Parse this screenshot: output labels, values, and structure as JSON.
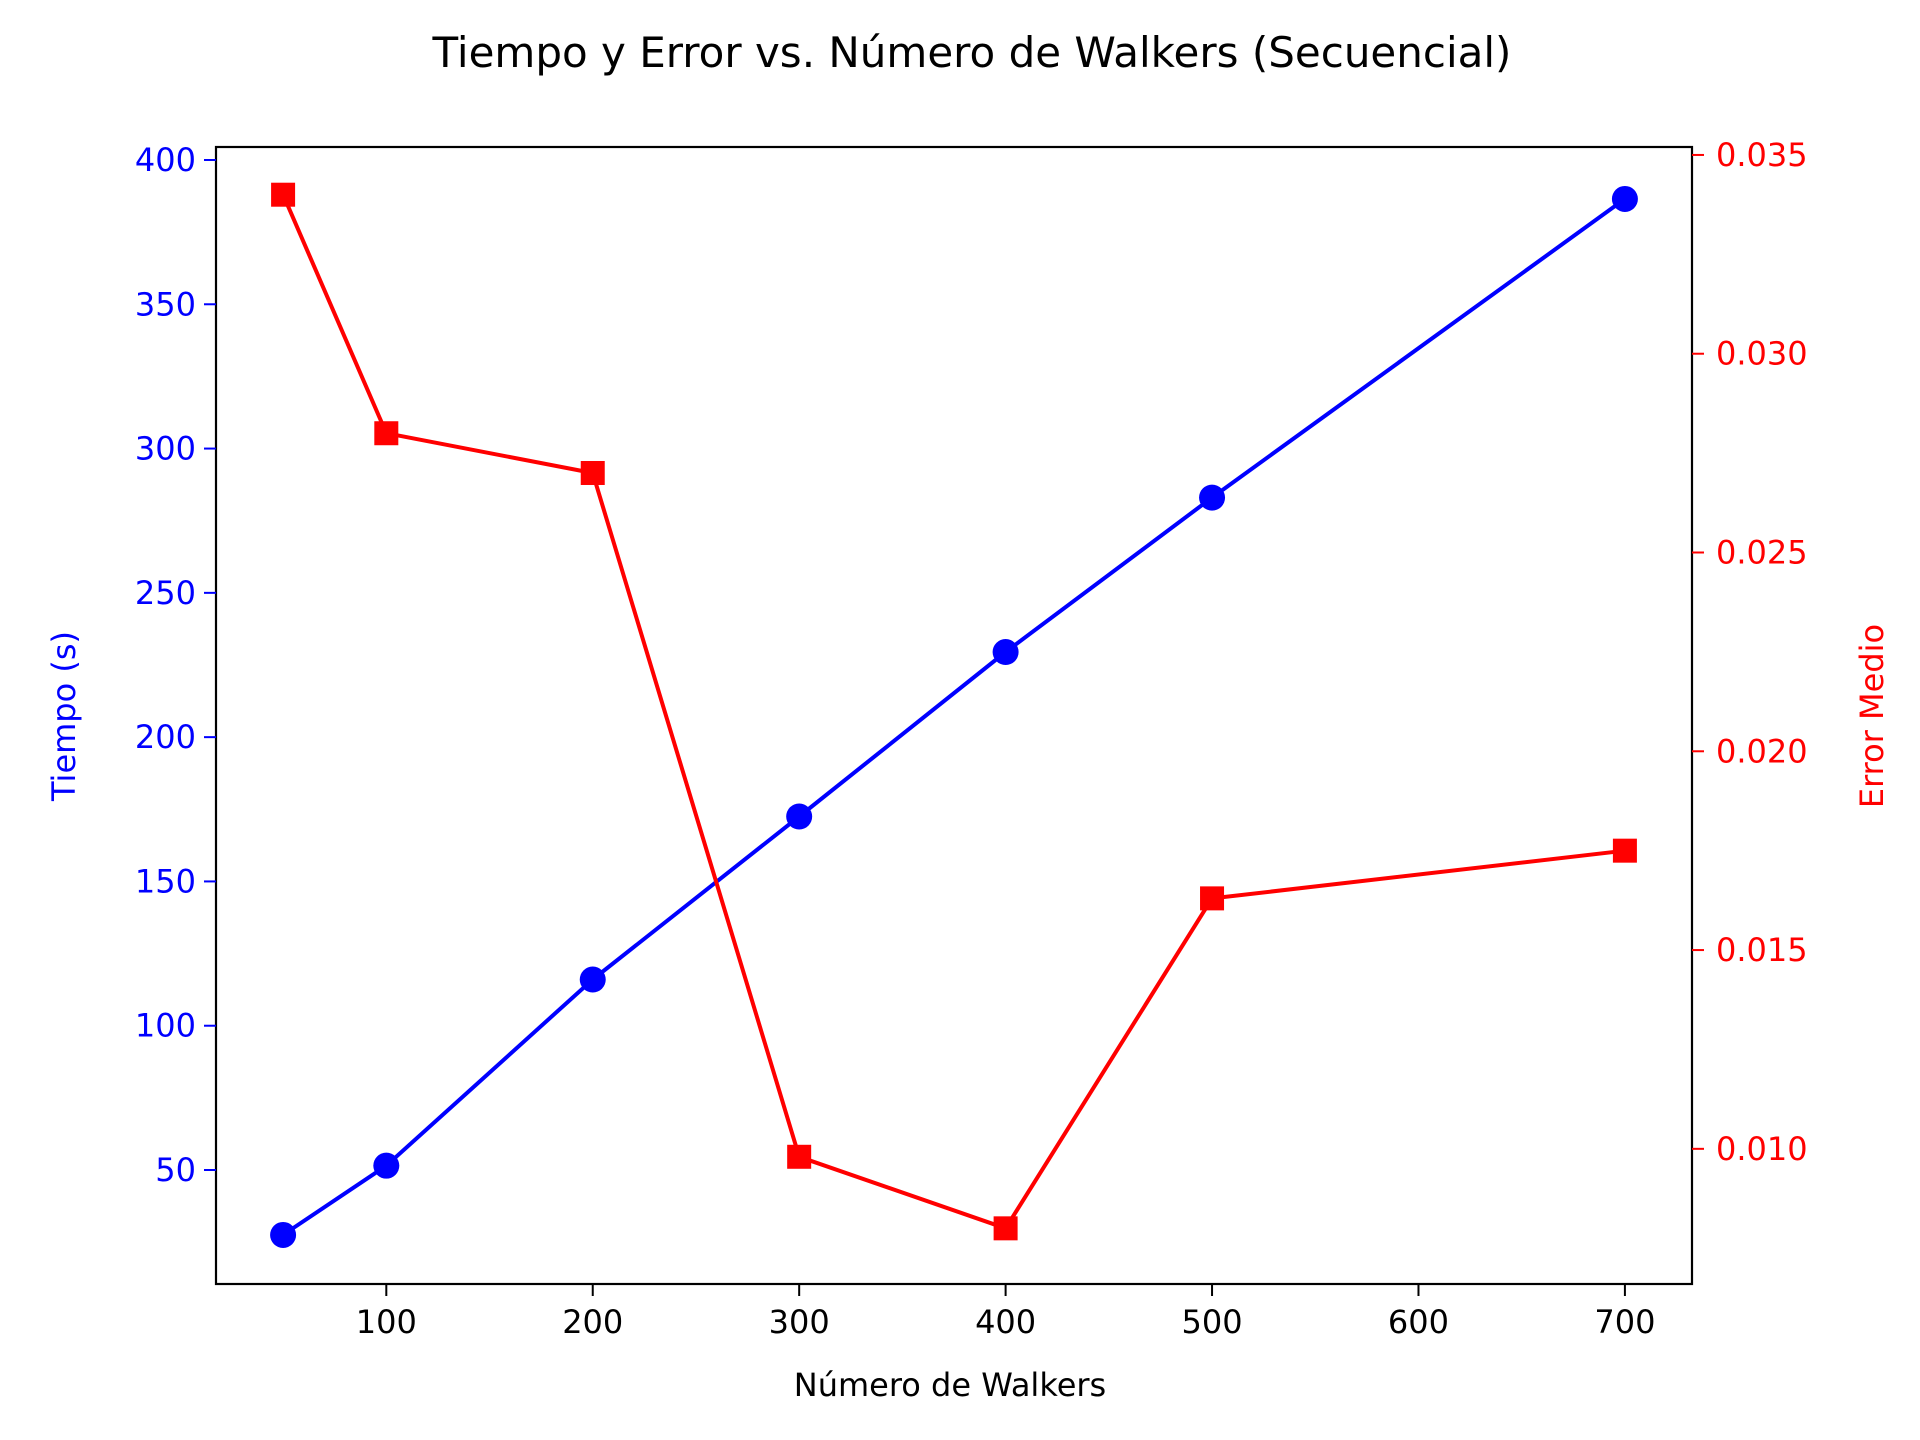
{
  "chart_data": {
    "type": "line",
    "title": "Tiempo y Error vs. Número de Walkers (Secuencial)",
    "xlabel": "Número de Walkers",
    "ylabel_left": "Tiempo (s)",
    "ylabel_right": "Error Medio",
    "x": [
      50,
      100,
      200,
      300,
      400,
      500,
      700
    ],
    "x_ticks": [
      100,
      200,
      300,
      400,
      500,
      600,
      700
    ],
    "xlim": [
      17.5,
      732.5
    ],
    "ylim_left": [
      10.5,
      404.5
    ],
    "y_ticks_left": [
      50,
      100,
      150,
      200,
      250,
      300,
      350,
      400
    ],
    "ylim_right": [
      0.0066,
      0.0352
    ],
    "y_ticks_right": [
      "0.010",
      "0.015",
      "0.020",
      "0.025",
      "0.030",
      "0.035"
    ],
    "grid": false,
    "series": [
      {
        "axis": "left",
        "color": "#0000ff",
        "marker": "circle",
        "values": [
          27.5,
          51.5,
          116,
          172.5,
          229.5,
          283,
          386.5
        ]
      },
      {
        "axis": "right",
        "color": "#ff0000",
        "marker": "square",
        "values": [
          0.034,
          0.028,
          0.027,
          0.0098,
          0.008,
          0.0163,
          0.0175
        ]
      }
    ]
  }
}
